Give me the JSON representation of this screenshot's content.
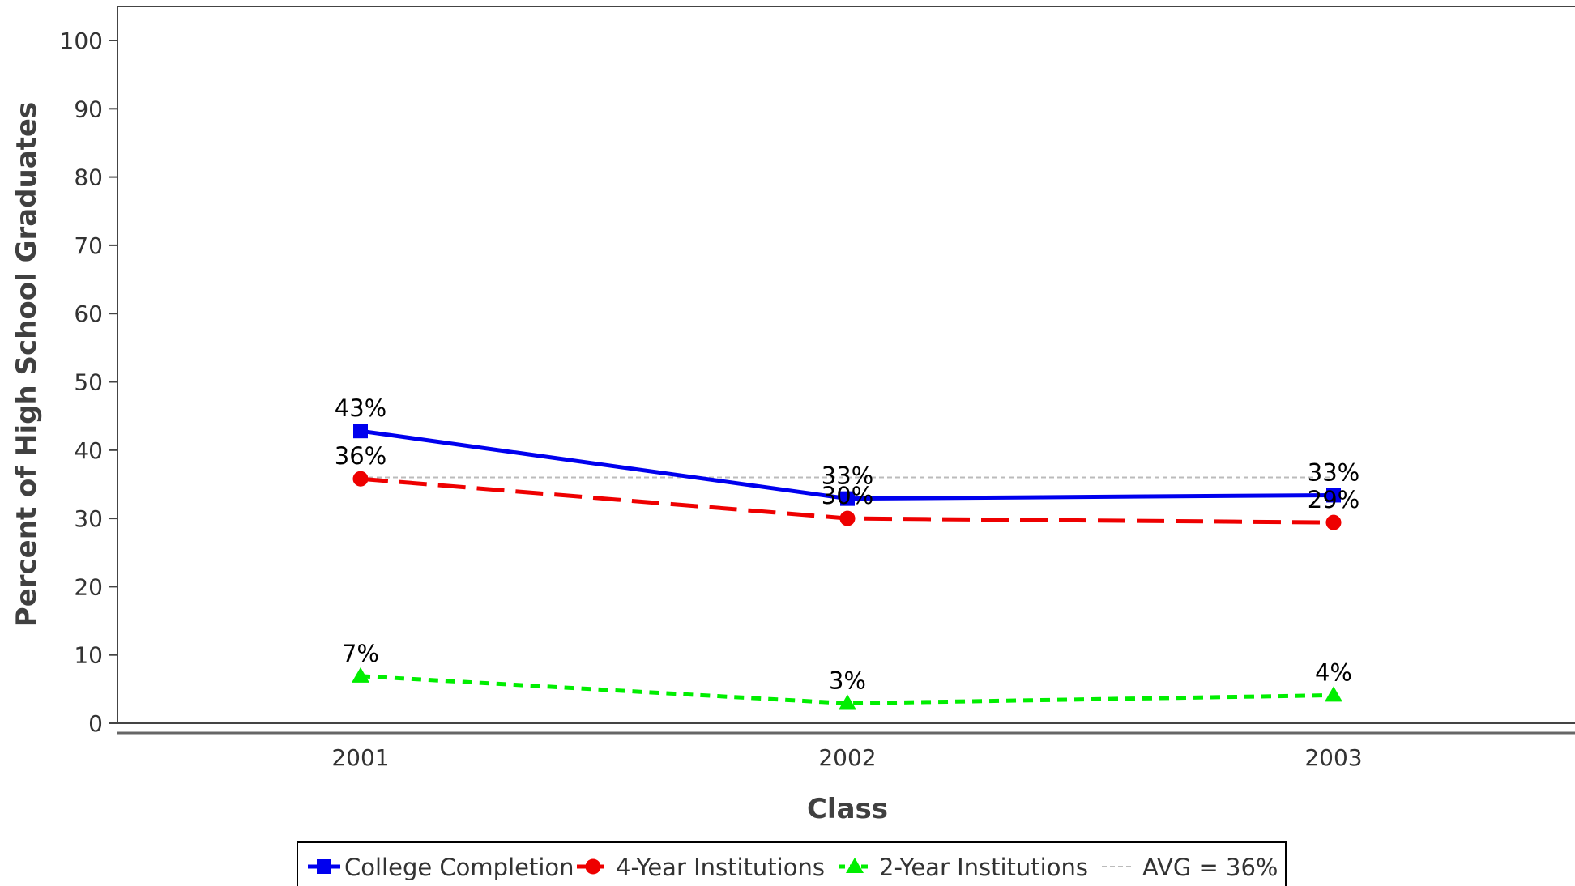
{
  "chart_data": {
    "type": "line",
    "title": "",
    "xlabel": "Class",
    "ylabel": "Percent of High School Graduates",
    "categories": [
      "2001",
      "2002",
      "2003"
    ],
    "ylim": [
      0,
      105
    ],
    "yticks": [
      0,
      10,
      20,
      30,
      40,
      50,
      60,
      70,
      80,
      90,
      100
    ],
    "grid": false,
    "legend_position": "bottom",
    "series": [
      {
        "name": "College Completion",
        "values": [
          42.8,
          32.9,
          33.4
        ],
        "labels": [
          "43%",
          "33%",
          "33%"
        ],
        "color": "#0000ee",
        "marker": "square",
        "dash": "solid"
      },
      {
        "name": "4-Year Institutions",
        "values": [
          35.8,
          30.0,
          29.4
        ],
        "labels": [
          "36%",
          "30%",
          "29%"
        ],
        "color": "#ee0000",
        "marker": "circle",
        "dash": "long-dash"
      },
      {
        "name": "2-Year Institutions",
        "values": [
          6.9,
          2.9,
          4.1
        ],
        "labels": [
          "7%",
          "3%",
          "4%"
        ],
        "color": "#00ee00",
        "marker": "triangle",
        "dash": "short-dash"
      }
    ],
    "reference_line": {
      "name": "AVG = 36%",
      "value": 36,
      "color": "#bbbbbb"
    }
  }
}
